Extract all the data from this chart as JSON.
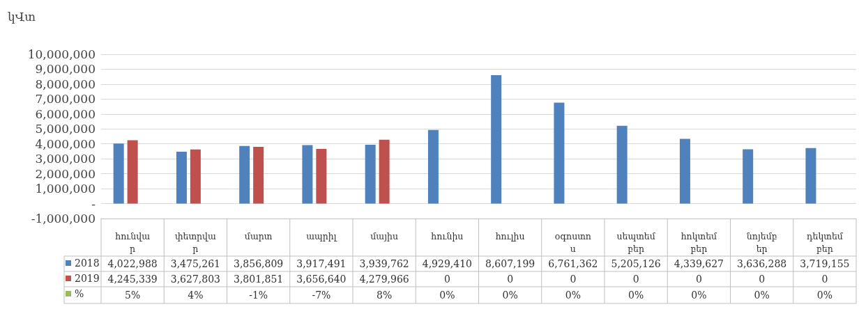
{
  "chart_data": {
    "type": "bar",
    "ylabel": "կՎտ",
    "categories": [
      "հունվար",
      "փետրվար",
      "մարտ",
      "ապրիլ",
      "մայիս",
      "հունիս",
      "հուլիս",
      "օգոստոս",
      "սեպտեմբեր",
      "հոկտեմբեր",
      "նոյեմբեր",
      "դեկտեմբեր"
    ],
    "series": [
      {
        "name": "2018",
        "color": "#4f81bd",
        "values": [
          4022988,
          3475261,
          3856809,
          3917491,
          3939762,
          4929410,
          8607199,
          6761362,
          5205126,
          4339627,
          3636288,
          3719155
        ],
        "value_labels": [
          "4,022,988",
          "3,475,261",
          "3,856,809",
          "3,917,491",
          "3,939,762",
          "4,929,410",
          "8,607,199",
          "6,761,362",
          "5,205,126",
          "4,339,627",
          "3,636,288",
          "3,719,155"
        ]
      },
      {
        "name": "2019",
        "color": "#c0504d",
        "values": [
          4245339,
          3627803,
          3801851,
          3656640,
          4279966,
          0,
          0,
          0,
          0,
          0,
          0,
          0
        ],
        "value_labels": [
          "4,245,339",
          "3,627,803",
          "3,801,851",
          "3,656,640",
          "4,279,966",
          "0",
          "0",
          "0",
          "0",
          "0",
          "0",
          "0"
        ]
      },
      {
        "name": "%",
        "color": "#9bbb59",
        "values": [
          5,
          4,
          -1,
          -7,
          8,
          0,
          0,
          0,
          0,
          0,
          0,
          0
        ],
        "value_labels": [
          "5%",
          "4%",
          "-1%",
          "-7%",
          "8%",
          "0%",
          "0%",
          "0%",
          "0%",
          "0%",
          "0%",
          "0%"
        ]
      }
    ],
    "ylim": [
      -1000000,
      10000000
    ],
    "yticks": [
      {
        "value": -1000000,
        "label": "-1,000,000"
      },
      {
        "value": 0,
        "label": "-"
      },
      {
        "value": 1000000,
        "label": "1,000,000"
      },
      {
        "value": 2000000,
        "label": "2,000,000"
      },
      {
        "value": 3000000,
        "label": "3,000,000"
      },
      {
        "value": 4000000,
        "label": "4,000,000"
      },
      {
        "value": 5000000,
        "label": "5,000,000"
      },
      {
        "value": 6000000,
        "label": "6,000,000"
      },
      {
        "value": 7000000,
        "label": "7,000,000"
      },
      {
        "value": 8000000,
        "label": "8,000,000"
      },
      {
        "value": 9000000,
        "label": "9,000,000"
      },
      {
        "value": 10000000,
        "label": "10,000,000"
      }
    ],
    "grid": "y",
    "legend": "bottom"
  }
}
